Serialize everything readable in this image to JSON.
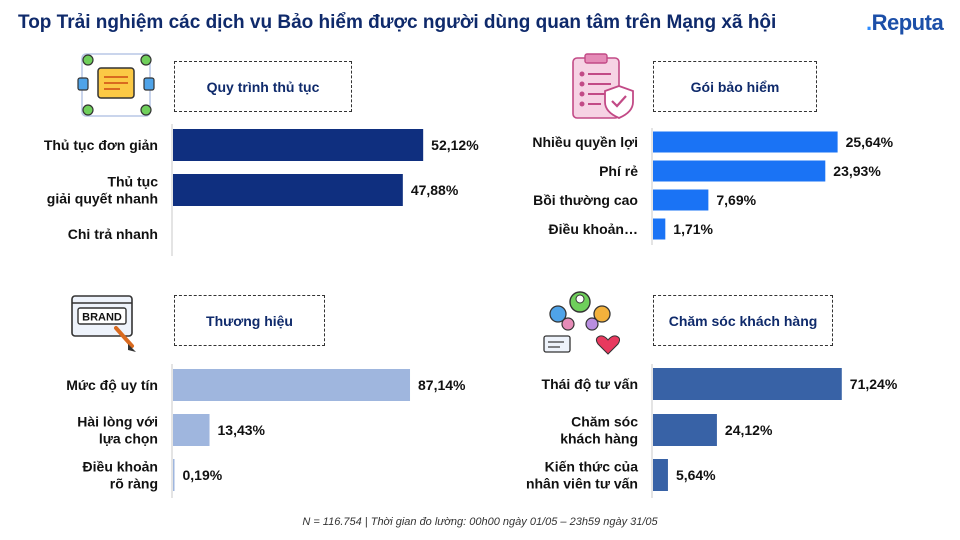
{
  "header": {
    "title": "Top Trải nghiệm các dịch vụ Bảo hiểm được người dùng quan tâm trên Mạng xã hội",
    "logo": "Reputa"
  },
  "chart_data": [
    {
      "type": "bar",
      "orientation": "horizontal",
      "title": "Quy trình thủ tục",
      "icon": "workflow-icon",
      "color": "#0f2f7f",
      "categories": [
        [
          "Thủ tục đơn giản"
        ],
        [
          "Thủ tục",
          "giải quyết nhanh"
        ],
        [
          "Chi trả nhanh"
        ]
      ],
      "values": [
        52.12,
        47.88,
        null
      ],
      "value_labels": [
        "52,12%",
        "47,88%",
        ""
      ]
    },
    {
      "type": "bar",
      "orientation": "horizontal",
      "title": "Gói bảo hiểm",
      "icon": "insurance-checklist-icon",
      "color": "#1a73f5",
      "categories": [
        [
          "Nhiều quyền lợi"
        ],
        [
          "Phí rẻ"
        ],
        [
          "Bồi thường cao"
        ],
        [
          "Điều khoản…"
        ]
      ],
      "values": [
        25.64,
        23.93,
        7.69,
        1.71
      ],
      "value_labels": [
        "25,64%",
        "23,93%",
        "7,69%",
        "1,71%"
      ]
    },
    {
      "type": "bar",
      "orientation": "horizontal",
      "title": "Thương hiệu",
      "icon": "brand-icon",
      "color": "#9fb6de",
      "categories": [
        [
          "Mức độ uy tín"
        ],
        [
          "Hài lòng với",
          "lựa chọn"
        ],
        [
          "Điều khoản",
          "rõ ràng"
        ]
      ],
      "values": [
        87.14,
        13.43,
        0.19
      ],
      "value_labels": [
        "87,14%",
        "13,43%",
        "0,19%"
      ]
    },
    {
      "type": "bar",
      "orientation": "horizontal",
      "title": "Chăm sóc khách hàng",
      "icon": "customer-care-icon",
      "color": "#3862a6",
      "categories": [
        [
          "Thái độ tư vấn"
        ],
        [
          "Chăm sóc",
          "khách hàng"
        ],
        [
          "Kiến thức của",
          "nhân viên tư vấn"
        ]
      ],
      "values": [
        71.24,
        24.12,
        5.64
      ],
      "value_labels": [
        "71,24%",
        "24,12%",
        "5,64%"
      ]
    }
  ],
  "footnote": "N = 116.754 | Thời gian đo lường: 00h00 ngày 01/05 – 23h59 ngày 31/05"
}
